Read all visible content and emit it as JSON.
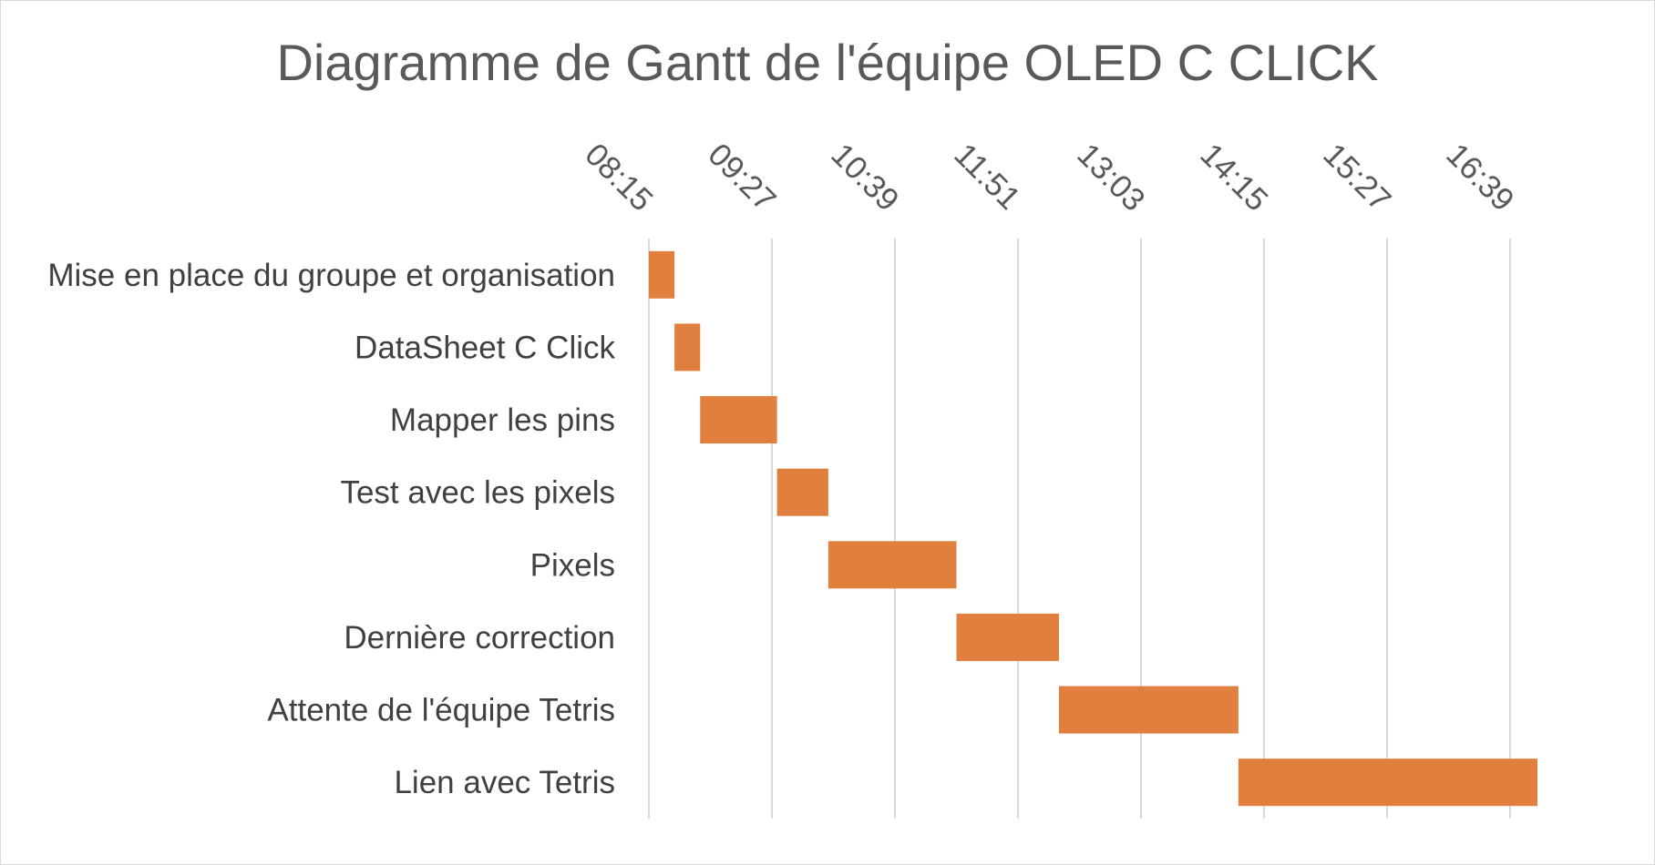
{
  "chart_data": {
    "type": "bar",
    "orientation": "horizontal",
    "subtype": "gantt",
    "title": "Diagramme de Gantt de l'équipe OLED C CLICK",
    "categories": [
      "Mise en place du groupe et organisation",
      "DataSheet C Click",
      "Mapper les pins",
      "Test avec les pixels",
      "Pixels",
      "Dernière correction",
      "Attente de l'équipe Tetris",
      "Lien avec Tetris"
    ],
    "tasks": [
      {
        "name": "Mise en place du groupe et organisation",
        "start": "08:15",
        "end": "08:30"
      },
      {
        "name": "DataSheet C Click",
        "start": "08:30",
        "end": "08:45"
      },
      {
        "name": "Mapper les pins",
        "start": "08:45",
        "end": "09:30"
      },
      {
        "name": "Test avec les pixels",
        "start": "09:30",
        "end": "10:00"
      },
      {
        "name": "Pixels",
        "start": "10:00",
        "end": "11:15"
      },
      {
        "name": "Dernière correction",
        "start": "11:15",
        "end": "12:15"
      },
      {
        "name": "Attente de l'équipe Tetris",
        "start": "12:15",
        "end": "14:00"
      },
      {
        "name": "Lien avec Tetris",
        "start": "14:00",
        "end": "16:55"
      }
    ],
    "x_ticks": [
      "08:15",
      "09:27",
      "10:39",
      "11:51",
      "13:03",
      "14:15",
      "15:27",
      "16:39"
    ],
    "xlim": [
      "08:15",
      "17:00"
    ],
    "x_axis_position": "top",
    "grid": true,
    "bar_color": "#E07F3E",
    "grid_color": "#d9d9d9"
  }
}
